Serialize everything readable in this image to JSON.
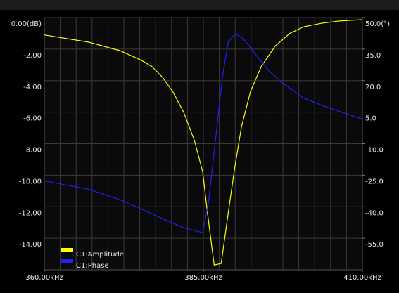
{
  "chart_data": {
    "type": "line",
    "x": [
      360,
      367,
      371.9,
      375.2,
      376.9,
      378.6,
      380.2,
      381.9,
      383.6,
      384.9,
      385.6,
      386.7,
      387.8,
      388.8,
      389.9,
      391,
      392.4,
      394.1,
      396.3,
      398.6,
      400.8,
      403.6,
      406.3,
      410
    ],
    "series": [
      {
        "name": "C1:Amplitude",
        "color": "#ffff00",
        "axis": "y",
        "values": [
          -1.1,
          -1.56,
          -2.1,
          -2.7,
          -3.1,
          -3.8,
          -4.7,
          -6.0,
          -7.8,
          -9.8,
          -12.25,
          -15.7,
          -15.6,
          -12.7,
          -9.6,
          -6.9,
          -4.7,
          -3.1,
          -1.8,
          -1.0,
          -0.58,
          -0.36,
          -0.22,
          -0.13
        ]
      },
      {
        "name": "C1:Phase",
        "color": "#2020ff",
        "axis": "y2",
        "x": [
          360,
          367,
          371.9,
          375.2,
          378.6,
          381.9,
          384.9,
          385.8,
          386.9,
          388,
          388.9,
          390,
          391.3,
          393,
          395.2,
          397.4,
          400.8,
          404.1,
          407.4,
          410
        ],
        "values": [
          -27.7,
          -31.7,
          -36.7,
          -41,
          -45.7,
          -50,
          -52.3,
          -38.3,
          -8.3,
          21.7,
          38.3,
          42.3,
          40,
          33.3,
          25,
          19,
          11.7,
          7.7,
          4.3,
          1.7
        ]
      }
    ],
    "xlim": [
      360,
      410
    ],
    "xticks": [
      {
        "value": 360,
        "label": "360.00kHz"
      },
      {
        "value": 385,
        "label": "385.00kHz"
      },
      {
        "value": 410,
        "label": "410.00kHz"
      }
    ],
    "xgrid": [
      362.5,
      365,
      367.5,
      370,
      372.5,
      375,
      377.5,
      380,
      382.5,
      385,
      387.5,
      390,
      392.5,
      395,
      397.5,
      400,
      402.5,
      405,
      407.5
    ],
    "ylim": [
      -16,
      0
    ],
    "yticks": [
      {
        "value": 0,
        "label": "0.00(dB)"
      },
      {
        "value": -2,
        "label": "-2.00"
      },
      {
        "value": -4,
        "label": "-4.00"
      },
      {
        "value": -6,
        "label": "-6.00"
      },
      {
        "value": -8,
        "label": "-8.00"
      },
      {
        "value": -10,
        "label": "-10.00"
      },
      {
        "value": -12,
        "label": "-12.00"
      },
      {
        "value": -14,
        "label": "-14.00"
      }
    ],
    "y2lim": [
      -70,
      50
    ],
    "y2ticks": [
      {
        "value": 50,
        "label": "50.0(°)"
      },
      {
        "value": 35,
        "label": "35.0"
      },
      {
        "value": 20,
        "label": "20.0"
      },
      {
        "value": 5,
        "label": "5.0"
      },
      {
        "value": -10,
        "label": "-10.0"
      },
      {
        "value": -25,
        "label": "-25.0"
      },
      {
        "value": -40,
        "label": "-40.0"
      },
      {
        "value": -55,
        "label": "-55.0"
      }
    ],
    "grid": true
  }
}
